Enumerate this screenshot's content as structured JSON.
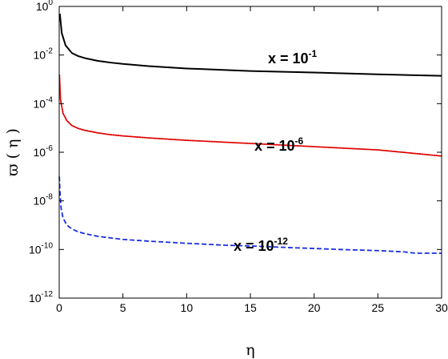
{
  "chart_data": {
    "type": "line",
    "xlabel": "η",
    "ylabel": "ϖ ( η )",
    "xlim": [
      0,
      30
    ],
    "ylim_log10": [
      -12,
      0
    ],
    "yscale": "log",
    "grid": false,
    "legend": "none",
    "xticks": [
      "0",
      "5",
      "10",
      "15",
      "20",
      "25",
      "30"
    ],
    "yticks": [
      {
        "base": "10",
        "exp": "0"
      },
      {
        "base": "10",
        "exp": "-2"
      },
      {
        "base": "10",
        "exp": "-4"
      },
      {
        "base": "10",
        "exp": "-6"
      },
      {
        "base": "10",
        "exp": "-8"
      },
      {
        "base": "10",
        "exp": "-10"
      },
      {
        "base": "10",
        "exp": "-12"
      }
    ],
    "series": [
      {
        "color": "#000000",
        "style": "solid",
        "label": {
          "base": "x = 10",
          "exp": "-1"
        },
        "x": [
          0.05,
          0.2,
          0.5,
          1,
          1.5,
          2,
          3,
          4,
          5,
          7,
          10,
          15,
          20,
          25,
          30
        ],
        "y": [
          0.5,
          0.08,
          0.025,
          0.012,
          0.009,
          0.0075,
          0.0058,
          0.0049,
          0.0043,
          0.0035,
          0.0028,
          0.0022,
          0.0019,
          0.0016,
          0.0014
        ]
      },
      {
        "color": "#e00000",
        "style": "dotted",
        "label": {
          "base": "x = 10",
          "exp": "-6"
        },
        "x": [
          0.02,
          0.1,
          0.3,
          0.6,
          1,
          1.5,
          2,
          3,
          4,
          5,
          7,
          10,
          15,
          20,
          25,
          30
        ],
        "y": [
          0.0015,
          0.00015,
          4e-05,
          2e-05,
          1.25e-05,
          9.5e-06,
          8e-06,
          6.3e-06,
          5.3e-06,
          4.7e-06,
          3.9e-06,
          3.1e-06,
          2.3e-06,
          1.7e-06,
          1.25e-06,
          7e-07
        ]
      },
      {
        "color": "#1a2fe0",
        "style": "dashed",
        "label": {
          "base": "x = 10",
          "exp": "-12"
        },
        "x": [
          0.01,
          0.05,
          0.15,
          0.3,
          0.6,
          1,
          1.5,
          2,
          3,
          4,
          5,
          7,
          10,
          13,
          15,
          18,
          20,
          22,
          25,
          27,
          28,
          30
        ],
        "y": [
          1e-07,
          3e-08,
          5e-09,
          2e-09,
          1e-09,
          7e-10,
          5.3e-10,
          4.5e-10,
          3.5e-10,
          3e-10,
          2.6e-10,
          2.2e-10,
          1.8e-10,
          1.5e-10,
          1.4e-10,
          1.2e-10,
          1.1e-10,
          1e-10,
          9e-11,
          8e-11,
          7e-11,
          7e-11
        ]
      }
    ]
  }
}
